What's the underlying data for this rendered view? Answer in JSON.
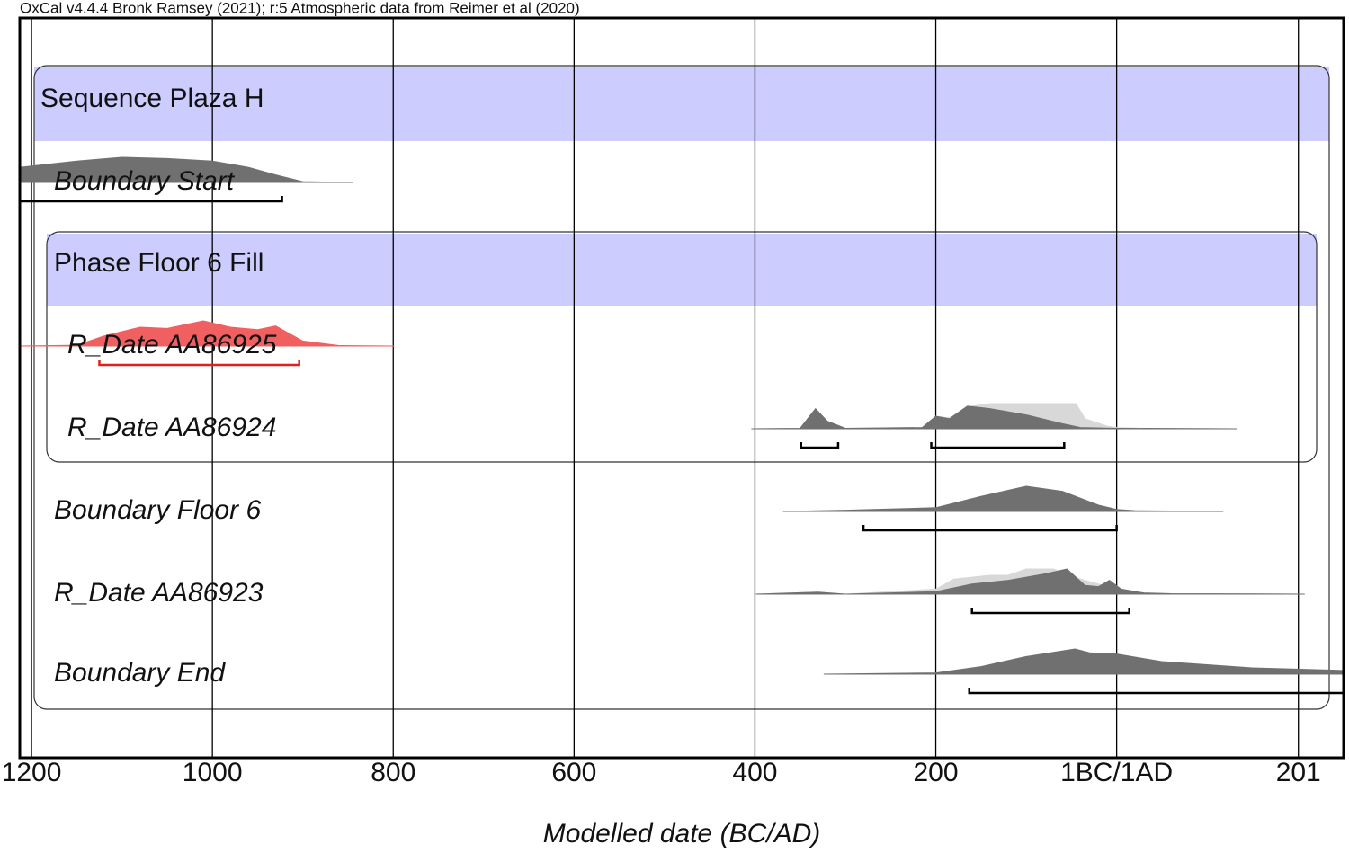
{
  "chart_data": {
    "type": "oxcal",
    "title": "OxCal v4.4.4 Bronk Ramsey (2021); r:5 Atmospheric data from Reimer et al (2020)",
    "x_label": "Modelled date (BC/AD)",
    "xlim": [
      -1213,
      251
    ],
    "xticks": [
      {
        "value": -1200,
        "label": "1200"
      },
      {
        "value": -1000,
        "label": "1000"
      },
      {
        "value": -800,
        "label": "800"
      },
      {
        "value": -600,
        "label": "600"
      },
      {
        "value": -400,
        "label": "400"
      },
      {
        "value": -200,
        "label": "200"
      },
      {
        "value": 0,
        "label": "1BC/1AD"
      },
      {
        "value": 201,
        "label": "201"
      }
    ],
    "grid": true,
    "groups": [
      {
        "label": "Sequence Plaza H",
        "color": "#ccccff"
      },
      {
        "label": "Phase Floor 6 Fill",
        "color": "#ccccff"
      }
    ],
    "rows": [
      {
        "label": "Boundary Start",
        "color": "#707070",
        "bracket_color": "#000000",
        "ranges": [
          [
            -1213,
            -923
          ]
        ],
        "posterior": {
          "x": [
            -1213,
            -1150,
            -1100,
            -1050,
            -1000,
            -960,
            -930,
            -900,
            -844
          ],
          "values": [
            60,
            85,
            100,
            95,
            85,
            60,
            30,
            3,
            0
          ]
        }
      },
      {
        "label": "R_Date AA86925",
        "color": "#f06060",
        "bracket_color": "#e02020",
        "ranges": [
          [
            -1125,
            -904
          ]
        ],
        "posterior": {
          "x": [
            -1213,
            -1150,
            -1120,
            -1080,
            -1050,
            -1010,
            -980,
            -950,
            -930,
            -900,
            -860,
            -799
          ],
          "values": [
            0,
            3,
            40,
            75,
            70,
            100,
            75,
            65,
            80,
            20,
            2,
            0
          ]
        }
      },
      {
        "label": "R_Date AA86924",
        "color": "#707070",
        "prior_color": "#d8d8d8",
        "bracket_color": "#000000",
        "ranges": [
          [
            -349,
            -308
          ],
          [
            -205,
            -58
          ]
        ],
        "prior": {
          "x": [
            -404,
            -350,
            -333,
            -320,
            -300,
            -215,
            -200,
            -180,
            -160,
            -140,
            -100,
            -60,
            -45,
            -35,
            -10,
            0,
            30,
            133
          ],
          "values": [
            0,
            2,
            70,
            30,
            2,
            5,
            50,
            40,
            90,
            100,
            100,
            100,
            100,
            40,
            10,
            5,
            2,
            0
          ]
        },
        "posterior": {
          "x": [
            -404,
            -350,
            -333,
            -320,
            -300,
            -215,
            -200,
            -185,
            -165,
            -140,
            -100,
            -60,
            -40,
            0,
            133
          ],
          "values": [
            0,
            2,
            80,
            30,
            2,
            5,
            50,
            40,
            90,
            80,
            55,
            20,
            5,
            2,
            0
          ]
        }
      },
      {
        "label": "Boundary Floor 6",
        "color": "#707070",
        "bracket_color": "#000000",
        "ranges": [
          [
            -280,
            0
          ]
        ],
        "posterior": {
          "x": [
            -369,
            -300,
            -200,
            -150,
            -100,
            -60,
            -20,
            0,
            20,
            118
          ],
          "values": [
            0,
            5,
            15,
            60,
            100,
            80,
            25,
            8,
            3,
            0
          ]
        }
      },
      {
        "label": "R_Date AA86923",
        "color": "#707070",
        "prior_color": "#d8d8d8",
        "bracket_color": "#000000",
        "ranges": [
          [
            -160,
            14
          ]
        ],
        "prior": {
          "x": [
            -399,
            -330,
            -300,
            -200,
            -180,
            -140,
            -120,
            -100,
            -70,
            -40,
            -10,
            20,
            60,
            208
          ],
          "values": [
            0,
            8,
            0,
            20,
            60,
            75,
            75,
            100,
            100,
            60,
            30,
            5,
            2,
            0
          ]
        },
        "posterior": {
          "x": [
            -399,
            -330,
            -300,
            -200,
            -160,
            -120,
            -80,
            -55,
            -35,
            -20,
            -8,
            5,
            30,
            60,
            208
          ],
          "values": [
            0,
            8,
            0,
            10,
            40,
            55,
            80,
            100,
            35,
            30,
            55,
            20,
            5,
            2,
            0
          ]
        }
      },
      {
        "label": "Boundary End",
        "color": "#707070",
        "bracket_color": "#000000",
        "ranges": [
          [
            -163,
            251
          ]
        ],
        "posterior": {
          "x": [
            -324,
            -200,
            -150,
            -100,
            -46,
            -30,
            0,
            50,
            150,
            251
          ],
          "values": [
            0,
            5,
            30,
            70,
            100,
            85,
            80,
            50,
            25,
            15
          ]
        }
      }
    ]
  }
}
